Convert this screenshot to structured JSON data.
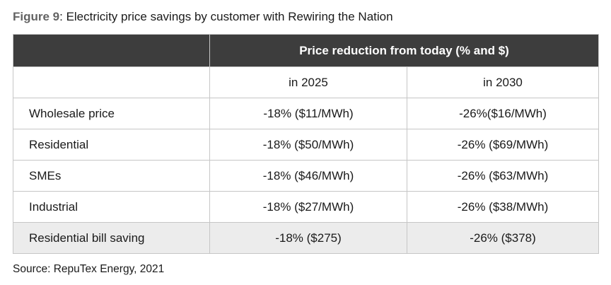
{
  "figure": {
    "label": "Figure 9",
    "title": ": Electricity price savings by customer with Rewiring the Nation"
  },
  "table": {
    "header": "Price reduction from today (% and $)",
    "subheaders": [
      "in 2025",
      "in 2030"
    ],
    "rows": [
      {
        "label": "Wholesale price",
        "y2025": "-18% ($11/MWh)",
        "y2030": "-26%($16/MWh)"
      },
      {
        "label": "Residential",
        "y2025": "-18% ($50/MWh)",
        "y2030": "-26% ($69/MWh)"
      },
      {
        "label": "SMEs",
        "y2025": "-18% ($46/MWh)",
        "y2030": "-26% ($63/MWh)"
      },
      {
        "label": "Industrial",
        "y2025": "-18% ($27/MWh)",
        "y2030": "-26% ($38/MWh)"
      },
      {
        "label": "Residential bill saving",
        "y2025": "-18% ($275)",
        "y2030": "-26% ($378)"
      }
    ]
  },
  "source": "Source: RepuTex Energy, 2021",
  "chart_data": {
    "type": "table",
    "title": "Electricity price savings by customer with Rewiring the Nation",
    "columns": [
      "",
      "in 2025",
      "in 2030"
    ],
    "rows": [
      [
        "Wholesale price",
        "-18% ($11/MWh)",
        "-26%($16/MWh)"
      ],
      [
        "Residential",
        "-18% ($50/MWh)",
        "-26% ($69/MWh)"
      ],
      [
        "SMEs",
        "-18% ($46/MWh)",
        "-26% ($63/MWh)"
      ],
      [
        "Industrial",
        "-18% ($27/MWh)",
        "-26% ($38/MWh)"
      ],
      [
        "Residential bill saving",
        "-18% ($275)",
        "-26% ($378)"
      ]
    ],
    "colors": {
      "header_bg": "#3d3d3d",
      "header_text": "#ffffff",
      "highlight_row_bg": "#ececec",
      "border": "#c6c6c6"
    }
  }
}
